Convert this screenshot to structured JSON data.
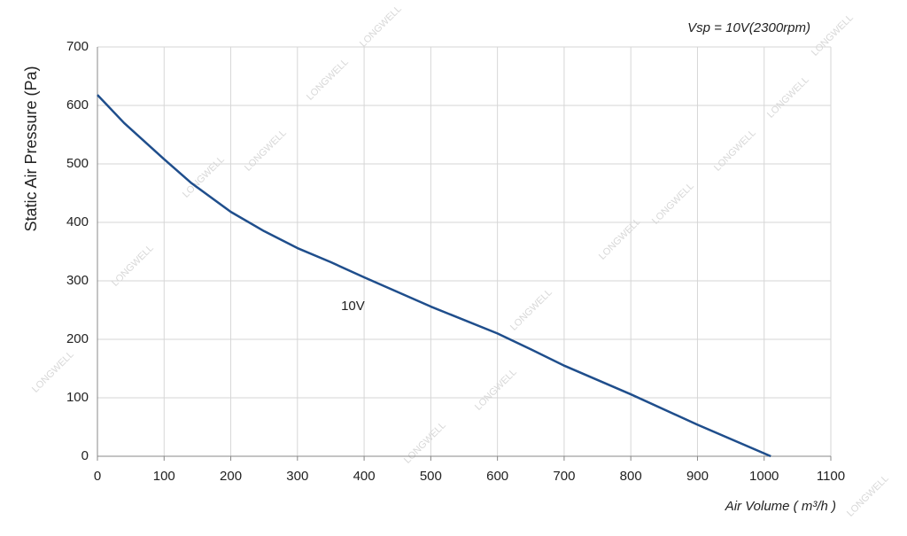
{
  "chart_data": {
    "type": "line",
    "annotation": "Vsp = 10V(2300rpm)",
    "watermark": "LONGWELL",
    "xlabel": "Air Volume ( m³/h )",
    "ylabel": "Static Air Pressure  (Pa)",
    "x": [
      0,
      40,
      100,
      140,
      200,
      250,
      300,
      350,
      400,
      500,
      600,
      650,
      700,
      800,
      900,
      1010
    ],
    "series": [
      {
        "name": "10V",
        "color": "#1f4e8c",
        "values": [
          618,
          570,
          508,
          468,
          418,
          385,
          356,
          332,
          306,
          256,
          210,
          183,
          155,
          106,
          54,
          0
        ]
      }
    ],
    "xlim": [
      0,
      1100
    ],
    "xticks": [
      0,
      100,
      200,
      300,
      400,
      500,
      600,
      700,
      800,
      900,
      1000,
      1100
    ],
    "ylim": [
      0,
      700
    ],
    "yticks": [
      0,
      100,
      200,
      300,
      400,
      500,
      600,
      700
    ],
    "grid": true
  }
}
